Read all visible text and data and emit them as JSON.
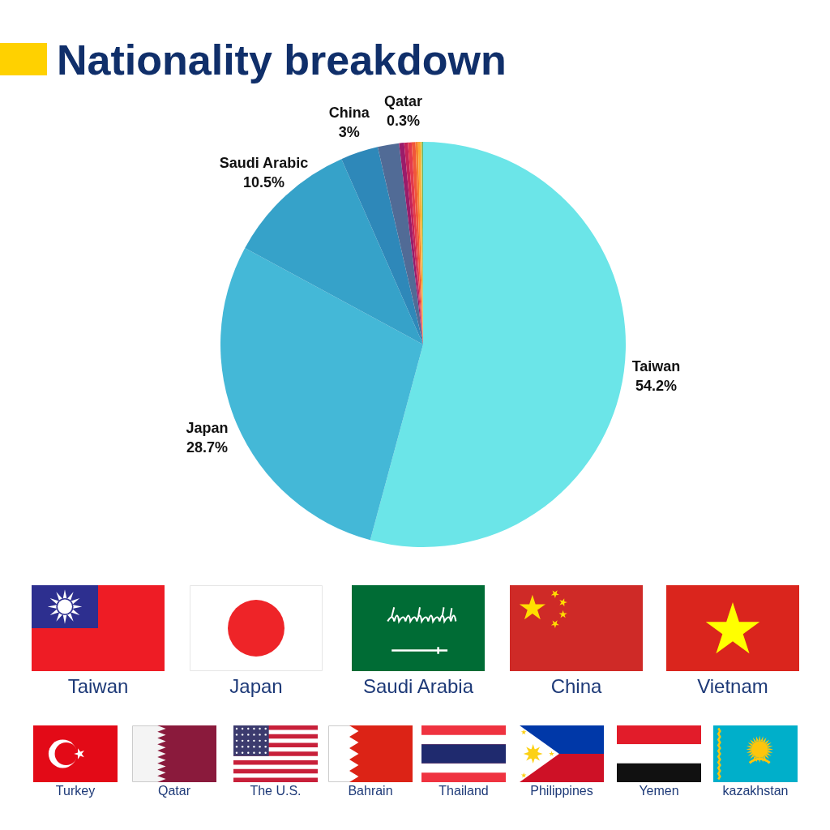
{
  "chart_data": {
    "type": "pie",
    "title": "Nationality breakdown",
    "categories": [
      "Taiwan",
      "Japan",
      "Saudi Arabic",
      "China",
      null,
      null,
      "Qatar",
      null,
      null,
      null,
      null,
      null,
      null
    ],
    "values": [
      54.2,
      28.7,
      10.5,
      3,
      1.7,
      0.4,
      0.3,
      0.3,
      0.3,
      0.2,
      0.2,
      0.1,
      0.1
    ],
    "value_labels": [
      "54.2%",
      "28.7%",
      "10.5%",
      "3%",
      null,
      null,
      "0.3%",
      null,
      null,
      null,
      null,
      null,
      null
    ],
    "colors": [
      "#6be5e8",
      "#44b8d7",
      "#36a2c9",
      "#2e88b9",
      "#516b96",
      "#9a1c6a",
      "#c42359",
      "#e23a4c",
      "#f0563a",
      "#f67f2e",
      "#f9a834",
      "#f4cb45",
      "#6fb463"
    ],
    "annotations": [
      "Taiwan",
      "Japan",
      "Saudi Arabia",
      "China",
      "Vietnam",
      "Turkey",
      "Qatar",
      "The U.S.",
      "Bahrain",
      "Thailand",
      "Philippines",
      "Yemen",
      "kazakhstan"
    ]
  }
}
